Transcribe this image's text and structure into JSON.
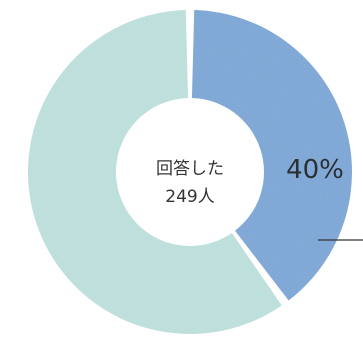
{
  "chart_data": {
    "type": "pie",
    "style": "donut",
    "center_text": [
      "回答した",
      "249人"
    ],
    "slices": [
      {
        "value": 40,
        "label": "40%",
        "color": "#7aa7d9"
      },
      {
        "value": 60,
        "label": "",
        "color": "#bfe3df"
      }
    ]
  }
}
